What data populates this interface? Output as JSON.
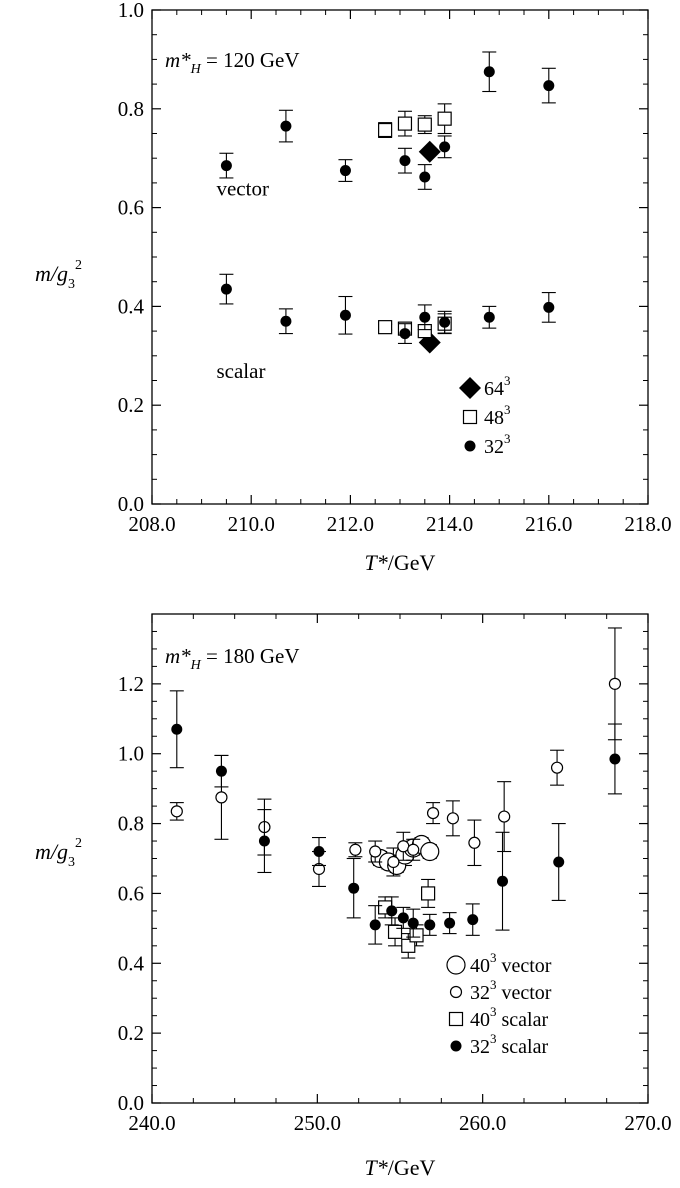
{
  "chart_data": [
    {
      "type": "scatter",
      "annotation": {
        "main": "m*",
        "sub": "H",
        "rest": " = 120 GeV"
      },
      "xlabel": {
        "main": "T*",
        "rest": "/GeV"
      },
      "ylabel": {
        "main": "m/g",
        "sub": "3",
        "sup": "2"
      },
      "xlim": [
        208,
        218
      ],
      "ylim": [
        0,
        1
      ],
      "xticks": [
        208,
        210,
        212,
        214,
        216,
        218
      ],
      "xtick_labels": [
        "208.0",
        "210.0",
        "212.0",
        "214.0",
        "216.0",
        "218.0"
      ],
      "yticks": [
        0,
        0.2,
        0.4,
        0.6,
        0.8,
        1.0
      ],
      "ytick_labels": [
        "0.0",
        "0.2",
        "0.4",
        "0.6",
        "0.8",
        "1.0"
      ],
      "text_labels": [
        {
          "text": "vector",
          "x": 209.3,
          "y": 0.625
        },
        {
          "text": "scalar",
          "x": 209.3,
          "y": 0.255
        }
      ],
      "legend": {
        "placement": "bottom-right",
        "entries": [
          {
            "marker": "diamond-filled",
            "base": "64",
            "sup": "3",
            "label": ""
          },
          {
            "marker": "square-open",
            "base": "48",
            "sup": "3",
            "label": ""
          },
          {
            "marker": "circle-filled-small",
            "base": "32",
            "sup": "3",
            "label": ""
          }
        ]
      },
      "series": [
        {
          "name": "64³",
          "marker": "diamond-filled",
          "points": [
            {
              "x": 213.6,
              "y": 0.713,
              "err": 0
            },
            {
              "x": 213.6,
              "y": 0.327,
              "err": 0
            }
          ]
        },
        {
          "name": "48³",
          "marker": "square-open",
          "points": [
            {
              "x": 212.7,
              "y": 0.757,
              "err": 0.015
            },
            {
              "x": 213.1,
              "y": 0.77,
              "err": 0.025
            },
            {
              "x": 213.5,
              "y": 0.768,
              "err": 0.018
            },
            {
              "x": 213.9,
              "y": 0.78,
              "err": 0.03
            },
            {
              "x": 212.7,
              "y": 0.358,
              "err": 0.006
            },
            {
              "x": 213.1,
              "y": 0.355,
              "err": 0.012
            },
            {
              "x": 213.5,
              "y": 0.35,
              "err": 0.01
            },
            {
              "x": 213.9,
              "y": 0.365,
              "err": 0.02
            }
          ]
        },
        {
          "name": "32³",
          "marker": "circle-filled-small",
          "points": [
            {
              "x": 209.5,
              "y": 0.685,
              "err": 0.025
            },
            {
              "x": 210.7,
              "y": 0.765,
              "err": 0.032
            },
            {
              "x": 211.9,
              "y": 0.675,
              "err": 0.022
            },
            {
              "x": 213.1,
              "y": 0.695,
              "err": 0.025
            },
            {
              "x": 213.5,
              "y": 0.662,
              "err": 0.025
            },
            {
              "x": 213.9,
              "y": 0.723,
              "err": 0.022
            },
            {
              "x": 214.8,
              "y": 0.875,
              "err": 0.04
            },
            {
              "x": 216.0,
              "y": 0.847,
              "err": 0.035
            },
            {
              "x": 209.5,
              "y": 0.435,
              "err": 0.03
            },
            {
              "x": 210.7,
              "y": 0.37,
              "err": 0.025
            },
            {
              "x": 211.9,
              "y": 0.382,
              "err": 0.038
            },
            {
              "x": 213.1,
              "y": 0.345,
              "err": 0.02
            },
            {
              "x": 213.5,
              "y": 0.378,
              "err": 0.025
            },
            {
              "x": 213.9,
              "y": 0.368,
              "err": 0.022
            },
            {
              "x": 214.8,
              "y": 0.378,
              "err": 0.022
            },
            {
              "x": 216.0,
              "y": 0.398,
              "err": 0.03
            }
          ]
        }
      ]
    },
    {
      "type": "scatter",
      "annotation": {
        "main": "m*",
        "sub": "H",
        "rest": " = 180 GeV"
      },
      "xlabel": {
        "main": "T*",
        "rest": "/GeV"
      },
      "ylabel": {
        "main": "m/g",
        "sub": "3",
        "sup": "2"
      },
      "xlim": [
        240,
        270
      ],
      "ylim": [
        0,
        1.4
      ],
      "xticks": [
        240,
        250,
        260,
        270
      ],
      "xtick_labels": [
        "240.0",
        "250.0",
        "260.0",
        "270.0"
      ],
      "yticks": [
        0,
        0.2,
        0.4,
        0.6,
        0.8,
        1.0,
        1.2
      ],
      "ytick_labels": [
        "0.0",
        "0.2",
        "0.4",
        "0.6",
        "0.8",
        "1.0",
        "1.2"
      ],
      "legend": {
        "placement": "bottom-right",
        "entries": [
          {
            "marker": "circle-open-large",
            "base": "40",
            "sup": "3",
            "label": " vector"
          },
          {
            "marker": "circle-open-small",
            "base": "32",
            "sup": "3",
            "label": " vector"
          },
          {
            "marker": "square-open",
            "base": "40",
            "sup": "3",
            "label": " scalar"
          },
          {
            "marker": "circle-filled-small",
            "base": "32",
            "sup": "3",
            "label": " scalar"
          }
        ]
      },
      "series": [
        {
          "name": "40³ vector",
          "marker": "circle-open-large",
          "points": [
            {
              "x": 253.8,
              "y": 0.7,
              "err": 0.02
            },
            {
              "x": 254.3,
              "y": 0.69,
              "err": 0.02
            },
            {
              "x": 254.8,
              "y": 0.68,
              "err": 0.02
            },
            {
              "x": 255.3,
              "y": 0.71,
              "err": 0.03
            },
            {
              "x": 255.8,
              "y": 0.73,
              "err": 0.02
            },
            {
              "x": 256.3,
              "y": 0.74,
              "err": 0.02
            },
            {
              "x": 256.8,
              "y": 0.72,
              "err": 0.02
            }
          ]
        },
        {
          "name": "32³ vector",
          "marker": "circle-open-small",
          "points": [
            {
              "x": 241.5,
              "y": 0.835,
              "err": 0.025
            },
            {
              "x": 244.2,
              "y": 0.875,
              "err": 0.12
            },
            {
              "x": 246.8,
              "y": 0.79,
              "err": 0.08
            },
            {
              "x": 250.1,
              "y": 0.67,
              "err": 0.05
            },
            {
              "x": 252.3,
              "y": 0.725,
              "err": 0.02
            },
            {
              "x": 253.5,
              "y": 0.72,
              "err": 0.03
            },
            {
              "x": 254.6,
              "y": 0.69,
              "err": 0.04
            },
            {
              "x": 255.2,
              "y": 0.735,
              "err": 0.04
            },
            {
              "x": 255.8,
              "y": 0.725,
              "err": 0.03
            },
            {
              "x": 257.0,
              "y": 0.83,
              "err": 0.03
            },
            {
              "x": 258.2,
              "y": 0.815,
              "err": 0.05
            },
            {
              "x": 259.5,
              "y": 0.745,
              "err": 0.065
            },
            {
              "x": 261.3,
              "y": 0.82,
              "err": 0.1
            },
            {
              "x": 264.5,
              "y": 0.96,
              "err": 0.05
            },
            {
              "x": 268.0,
              "y": 1.2,
              "err": 0.16
            }
          ]
        },
        {
          "name": "40³ scalar",
          "marker": "square-open",
          "points": [
            {
              "x": 254.1,
              "y": 0.56,
              "err": 0.03
            },
            {
              "x": 254.7,
              "y": 0.49,
              "err": 0.04
            },
            {
              "x": 255.5,
              "y": 0.45,
              "err": 0.035
            },
            {
              "x": 256.0,
              "y": 0.48,
              "err": 0.03
            },
            {
              "x": 256.7,
              "y": 0.6,
              "err": 0.04
            }
          ]
        },
        {
          "name": "32³ scalar",
          "marker": "circle-filled-small",
          "points": [
            {
              "x": 241.5,
              "y": 1.07,
              "err": 0.11
            },
            {
              "x": 244.2,
              "y": 0.95,
              "err": 0.045
            },
            {
              "x": 246.8,
              "y": 0.75,
              "err": 0.09
            },
            {
              "x": 250.1,
              "y": 0.72,
              "err": 0.04
            },
            {
              "x": 252.2,
              "y": 0.615,
              "err": 0.085
            },
            {
              "x": 253.5,
              "y": 0.51,
              "err": 0.055
            },
            {
              "x": 254.5,
              "y": 0.55,
              "err": 0.04
            },
            {
              "x": 255.2,
              "y": 0.53,
              "err": 0.03
            },
            {
              "x": 255.8,
              "y": 0.515,
              "err": 0.04
            },
            {
              "x": 256.8,
              "y": 0.51,
              "err": 0.03
            },
            {
              "x": 258.0,
              "y": 0.515,
              "err": 0.03
            },
            {
              "x": 259.4,
              "y": 0.525,
              "err": 0.045
            },
            {
              "x": 261.2,
              "y": 0.635,
              "err": 0.14
            },
            {
              "x": 264.6,
              "y": 0.69,
              "err": 0.11
            },
            {
              "x": 268.0,
              "y": 0.985,
              "err": 0.1
            }
          ]
        }
      ]
    }
  ]
}
